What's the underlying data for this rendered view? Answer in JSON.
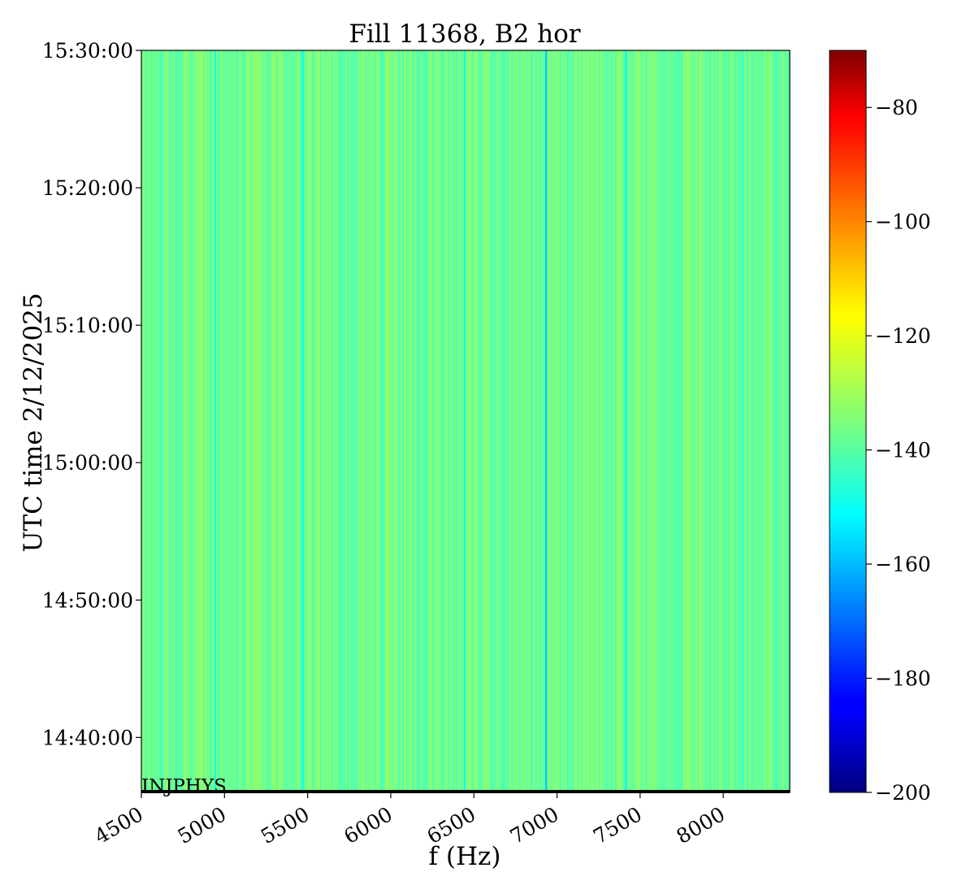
{
  "chart_data": {
    "type": "heatmap",
    "title": "Fill 11368, B2 hor",
    "xlabel": "f (Hz)",
    "ylabel": "UTC time 2/12/2025",
    "xlim": [
      4500,
      8400
    ],
    "xticks": [
      4500,
      5000,
      5500,
      6000,
      6500,
      7000,
      7500,
      8000
    ],
    "xtick_labels": [
      "4500",
      "5000",
      "5500",
      "6000",
      "6500",
      "7000",
      "7500",
      "8000"
    ],
    "ylim": [
      "14:36:00",
      "15:30:00"
    ],
    "yticks": [
      "14:40:00",
      "14:50:00",
      "15:00:00",
      "15:10:00",
      "15:20:00",
      "15:30:00"
    ],
    "colorbar": {
      "colormap": "jet",
      "range": [
        -200,
        -70
      ],
      "ticks": [
        -200,
        -180,
        -160,
        -140,
        -120,
        -100,
        -80
      ],
      "tick_labels": [
        "−200",
        "−180",
        "−160",
        "−140",
        "−120",
        "−100",
        "−80"
      ]
    },
    "values_summary": {
      "typical_range_db": [
        -148,
        -132
      ],
      "notable_low_lines_hz": [
        {
          "f": 6935,
          "value": -158
        },
        {
          "f": 7415,
          "value": -152
        },
        {
          "f": 4945,
          "value": -150
        },
        {
          "f": 5470,
          "value": -150
        },
        {
          "f": 6445,
          "value": -150
        }
      ]
    },
    "annotation": "INJPHYS",
    "grid": false
  }
}
